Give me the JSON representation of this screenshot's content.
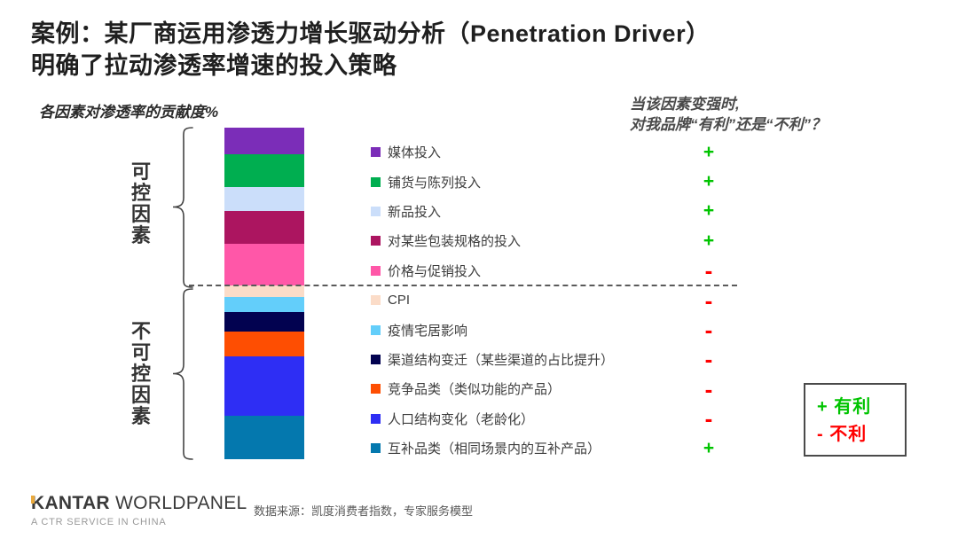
{
  "slide": {
    "title": {
      "line1": "案例：某厂商运用渗透力增长驱动分析（Penetration Driver）",
      "line2": "明确了拉动渗透率增速的投入策略"
    },
    "chart_note": "各因素对渗透率的贡献度%",
    "question": {
      "line1": "当该因素变强时,",
      "line2": "对我品牌“有利”还是“不利”？"
    },
    "groups": {
      "controllable": "可控因素",
      "uncontrollable": "不可控因素"
    },
    "legend_box": {
      "favorable": "+ 有利",
      "unfavorable": "- 不利"
    },
    "footer": {
      "logo_main": "KANTAR",
      "logo_sub": " WORLDPANEL",
      "tagline": "A CTR SERVICE IN CHINA",
      "source": "数据来源：凯度消费者指数，专家服务模型"
    }
  },
  "colors": {
    "plus": "#00C400",
    "minus": "#FF0000",
    "brand_accent": "#E9A93D",
    "dash_line": "#5a5a5a"
  },
  "chart_data": {
    "type": "bar",
    "subtype": "single_stacked_column",
    "title": "各因素对渗透率的贡献度%",
    "orientation": "vertical",
    "legend_position": "right",
    "grid": false,
    "note": "segment values are % contribution estimated from segment pixel heights, listed top-to-bottom; effect = 当该因素变强时对品牌有利(+)还是不利(-)",
    "categories": [
      "各因素对渗透率的贡献度%"
    ],
    "series": [
      {
        "name": "媒体投入",
        "value": 8.0,
        "color": "#7B2DB8",
        "group": "可控因素",
        "effect": "+"
      },
      {
        "name": "铺货与陈列投入",
        "value": 10.0,
        "color": "#00AE50",
        "group": "可控因素",
        "effect": "+"
      },
      {
        "name": "新品投入",
        "value": 7.0,
        "color": "#CBDEFA",
        "group": "可控因素",
        "effect": "+"
      },
      {
        "name": "对某些包装规格的投入",
        "value": 10.0,
        "color": "#AC1560",
        "group": "可控因素",
        "effect": "+"
      },
      {
        "name": "价格与促销投入",
        "value": 12.5,
        "color": "#FF57A8",
        "group": "可控因素",
        "effect": "-"
      },
      {
        "name": "CPI",
        "value": 3.5,
        "color": "#FBDCC8",
        "group": "不可控因素",
        "effect": "-"
      },
      {
        "name": "疫情宅居影响",
        "value": 4.5,
        "color": "#63CEFA",
        "group": "不可控因素",
        "effect": "-"
      },
      {
        "name": "渠道结构变迁（某些渠道的占比提升）",
        "value": 6.0,
        "color": "#020250",
        "group": "不可控因素",
        "effect": "-"
      },
      {
        "name": "竞争品类（类似功能的产品）",
        "value": 7.5,
        "color": "#FE4E02",
        "group": "不可控因素",
        "effect": "-"
      },
      {
        "name": "人口结构变化（老龄化）",
        "value": 18.0,
        "color": "#2E2EF4",
        "group": "不可控因素",
        "effect": "-"
      },
      {
        "name": "互补品类（相同场景内的互补产品）",
        "value": 13.0,
        "color": "#0478AE",
        "group": "不可控因素",
        "effect": "+"
      }
    ]
  }
}
